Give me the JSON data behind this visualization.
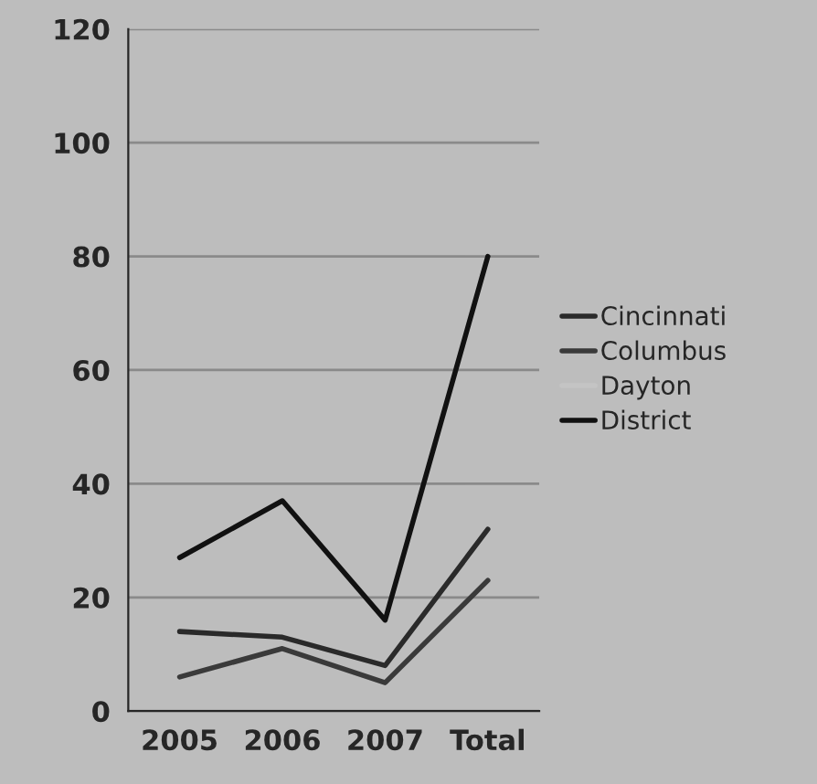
{
  "chart_data": {
    "type": "line",
    "categories": [
      "2005",
      "2006",
      "2007",
      "Total"
    ],
    "series": [
      {
        "name": "Cincinnati",
        "color": "#2a2a2a",
        "values": [
          14,
          13,
          8,
          32
        ]
      },
      {
        "name": "Columbus",
        "color": "#3a3a3a",
        "values": [
          6,
          11,
          5,
          23
        ]
      },
      {
        "name": "Dayton",
        "color": "#c4c4c4",
        "values": [
          null,
          null,
          null,
          null
        ]
      },
      {
        "name": "District",
        "color": "#111111",
        "values": [
          27,
          37,
          16,
          80
        ]
      }
    ],
    "ylim": [
      0,
      120
    ],
    "yticks": [
      0,
      20,
      40,
      60,
      80,
      100,
      120
    ],
    "grid": "y",
    "legend": "right",
    "marker": "none",
    "line_style": "solid"
  }
}
